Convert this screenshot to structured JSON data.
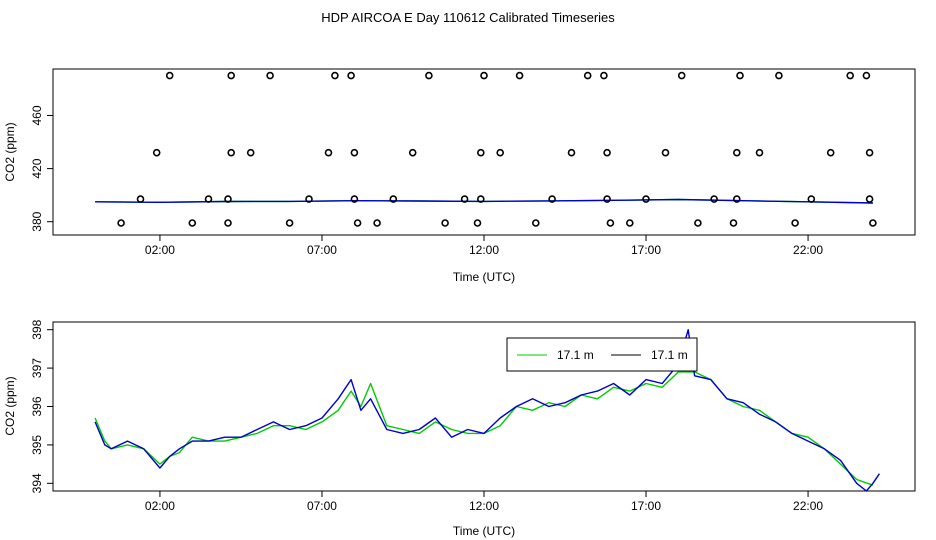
{
  "title": "HDP AIRCOA E  Day 110612  Calibrated Timeseries",
  "colors": {
    "green": "#00cc00",
    "blue": "#0000cc",
    "black": "#000000"
  },
  "chart_data": [
    {
      "type": "scatter",
      "xlabel": "Time (UTC)",
      "ylabel": "CO2 (ppm)",
      "xlim": [
        -1.3,
        25.3
      ],
      "ylim": [
        370,
        495
      ],
      "x_ticks": [
        2,
        7,
        12,
        17,
        22
      ],
      "x_tick_labels": [
        "02:00",
        "07:00",
        "12:00",
        "17:00",
        "22:00"
      ],
      "y_ticks": [
        380,
        420,
        460
      ],
      "y_tick_labels": [
        "380",
        "420",
        "460"
      ],
      "grid": false,
      "points": [
        [
          0.8,
          379
        ],
        [
          1.4,
          397
        ],
        [
          1.9,
          432
        ],
        [
          2.3,
          490
        ],
        [
          3.0,
          379
        ],
        [
          3.5,
          397
        ],
        [
          4.1,
          379
        ],
        [
          4.1,
          397
        ],
        [
          4.2,
          432
        ],
        [
          4.2,
          490
        ],
        [
          4.8,
          432
        ],
        [
          5.4,
          490
        ],
        [
          6.0,
          379
        ],
        [
          6.6,
          397
        ],
        [
          7.2,
          432
        ],
        [
          7.4,
          490
        ],
        [
          7.9,
          490
        ],
        [
          8.0,
          432
        ],
        [
          8.0,
          397
        ],
        [
          8.1,
          379
        ],
        [
          8.7,
          379
        ],
        [
          9.2,
          397
        ],
        [
          9.8,
          432
        ],
        [
          10.3,
          490
        ],
        [
          10.8,
          379
        ],
        [
          11.4,
          397
        ],
        [
          11.8,
          379
        ],
        [
          11.9,
          397
        ],
        [
          11.9,
          432
        ],
        [
          12.0,
          490
        ],
        [
          12.5,
          432
        ],
        [
          13.1,
          490
        ],
        [
          13.6,
          379
        ],
        [
          14.1,
          397
        ],
        [
          14.7,
          432
        ],
        [
          15.2,
          490
        ],
        [
          15.7,
          490
        ],
        [
          15.8,
          432
        ],
        [
          15.8,
          397
        ],
        [
          15.9,
          379
        ],
        [
          16.5,
          379
        ],
        [
          17.0,
          397
        ],
        [
          17.6,
          432
        ],
        [
          18.1,
          490
        ],
        [
          18.6,
          379
        ],
        [
          19.1,
          397
        ],
        [
          19.7,
          379
        ],
        [
          19.8,
          397
        ],
        [
          19.8,
          432
        ],
        [
          19.9,
          490
        ],
        [
          20.5,
          432
        ],
        [
          21.1,
          490
        ],
        [
          21.6,
          379
        ],
        [
          22.1,
          397
        ],
        [
          22.7,
          432
        ],
        [
          23.3,
          490
        ],
        [
          23.8,
          490
        ],
        [
          23.9,
          432
        ],
        [
          23.9,
          397
        ],
        [
          24.0,
          379
        ]
      ],
      "series": [
        {
          "style": "line",
          "color": "#00cc00",
          "x": [
            0.0,
            2.0,
            4.0,
            6.0,
            8.0,
            10.0,
            12.0,
            14.0,
            16.0,
            18.0,
            20.0,
            22.0,
            24.0
          ],
          "y": [
            395.0,
            394.6,
            395.2,
            395.3,
            395.8,
            395.6,
            395.3,
            395.7,
            396.1,
            396.7,
            395.8,
            395.0,
            394.1
          ]
        },
        {
          "style": "line",
          "color": "#0000cc",
          "x": [
            0.0,
            2.0,
            4.0,
            6.0,
            8.0,
            10.0,
            12.0,
            14.0,
            16.0,
            18.0,
            20.0,
            22.0,
            24.0
          ],
          "y": [
            395.0,
            394.6,
            395.2,
            395.3,
            395.8,
            395.6,
            395.3,
            395.7,
            396.1,
            396.7,
            395.8,
            395.0,
            394.1
          ]
        }
      ]
    },
    {
      "type": "line",
      "xlabel": "Time (UTC)",
      "ylabel": "CO2 (ppm)",
      "xlim": [
        -1.3,
        25.3
      ],
      "ylim": [
        393.8,
        398.2
      ],
      "x_ticks": [
        2,
        7,
        12,
        17,
        22
      ],
      "x_tick_labels": [
        "02:00",
        "07:00",
        "12:00",
        "17:00",
        "22:00"
      ],
      "y_ticks": [
        394,
        395,
        396,
        397,
        398
      ],
      "y_tick_labels": [
        "394",
        "395",
        "396",
        "397",
        "398"
      ],
      "grid": false,
      "legend": {
        "placement": "top-center",
        "entries": [
          "17.1 m",
          "17.1 m"
        ]
      },
      "series": [
        {
          "name": "17.1 m",
          "color": "#00cc00",
          "x": [
            0.0,
            0.3,
            0.5,
            1.0,
            1.5,
            2.0,
            2.3,
            2.6,
            3.0,
            3.5,
            4.0,
            4.5,
            5.0,
            5.5,
            6.0,
            6.5,
            7.0,
            7.5,
            7.9,
            8.2,
            8.5,
            9.0,
            9.5,
            10.0,
            10.5,
            11.0,
            11.5,
            12.0,
            12.5,
            13.0,
            13.5,
            14.0,
            14.5,
            15.0,
            15.5,
            16.0,
            16.5,
            17.0,
            17.5,
            18.0,
            18.5,
            19.0,
            19.5,
            20.0,
            20.5,
            21.0,
            21.5,
            22.0,
            22.5,
            23.0,
            23.5,
            24.0
          ],
          "y": [
            395.7,
            395.1,
            394.9,
            395.0,
            394.9,
            394.5,
            394.7,
            394.8,
            395.2,
            395.1,
            395.1,
            395.2,
            395.3,
            395.5,
            395.5,
            395.4,
            395.6,
            395.9,
            396.4,
            396.0,
            396.6,
            395.5,
            395.4,
            395.3,
            395.6,
            395.4,
            395.3,
            395.3,
            395.5,
            396.0,
            395.9,
            396.1,
            396.0,
            396.3,
            396.2,
            396.5,
            396.4,
            396.6,
            396.5,
            396.9,
            396.9,
            396.7,
            396.2,
            396.0,
            395.9,
            395.6,
            395.3,
            395.2,
            394.9,
            394.5,
            394.1,
            393.95
          ]
        },
        {
          "name": "17.1 m",
          "color": "#0000cc",
          "x": [
            0.0,
            0.3,
            0.5,
            1.0,
            1.5,
            2.0,
            2.3,
            2.6,
            3.0,
            3.5,
            4.0,
            4.5,
            5.0,
            5.5,
            6.0,
            6.5,
            7.0,
            7.5,
            7.9,
            8.2,
            8.5,
            9.0,
            9.5,
            10.0,
            10.5,
            11.0,
            11.5,
            12.0,
            12.5,
            13.0,
            13.5,
            14.0,
            14.5,
            15.0,
            15.5,
            16.0,
            16.5,
            17.0,
            17.5,
            18.0,
            18.3,
            18.5,
            19.0,
            19.5,
            20.0,
            20.5,
            21.0,
            21.5,
            22.0,
            22.5,
            23.0,
            23.5,
            23.8,
            24.0,
            24.2
          ],
          "y": [
            395.6,
            395.0,
            394.9,
            395.1,
            394.9,
            394.4,
            394.7,
            394.9,
            395.1,
            395.1,
            395.2,
            395.2,
            395.4,
            395.6,
            395.4,
            395.5,
            395.7,
            396.2,
            396.7,
            395.9,
            396.2,
            395.4,
            395.3,
            395.4,
            395.7,
            395.2,
            395.4,
            395.3,
            395.7,
            396.0,
            396.2,
            396.0,
            396.1,
            396.3,
            396.4,
            396.6,
            396.3,
            396.7,
            396.6,
            397.1,
            398.0,
            396.8,
            396.7,
            396.2,
            396.1,
            395.8,
            395.6,
            395.3,
            395.1,
            394.9,
            394.6,
            394.0,
            393.8,
            394.0,
            394.25
          ]
        }
      ]
    }
  ]
}
